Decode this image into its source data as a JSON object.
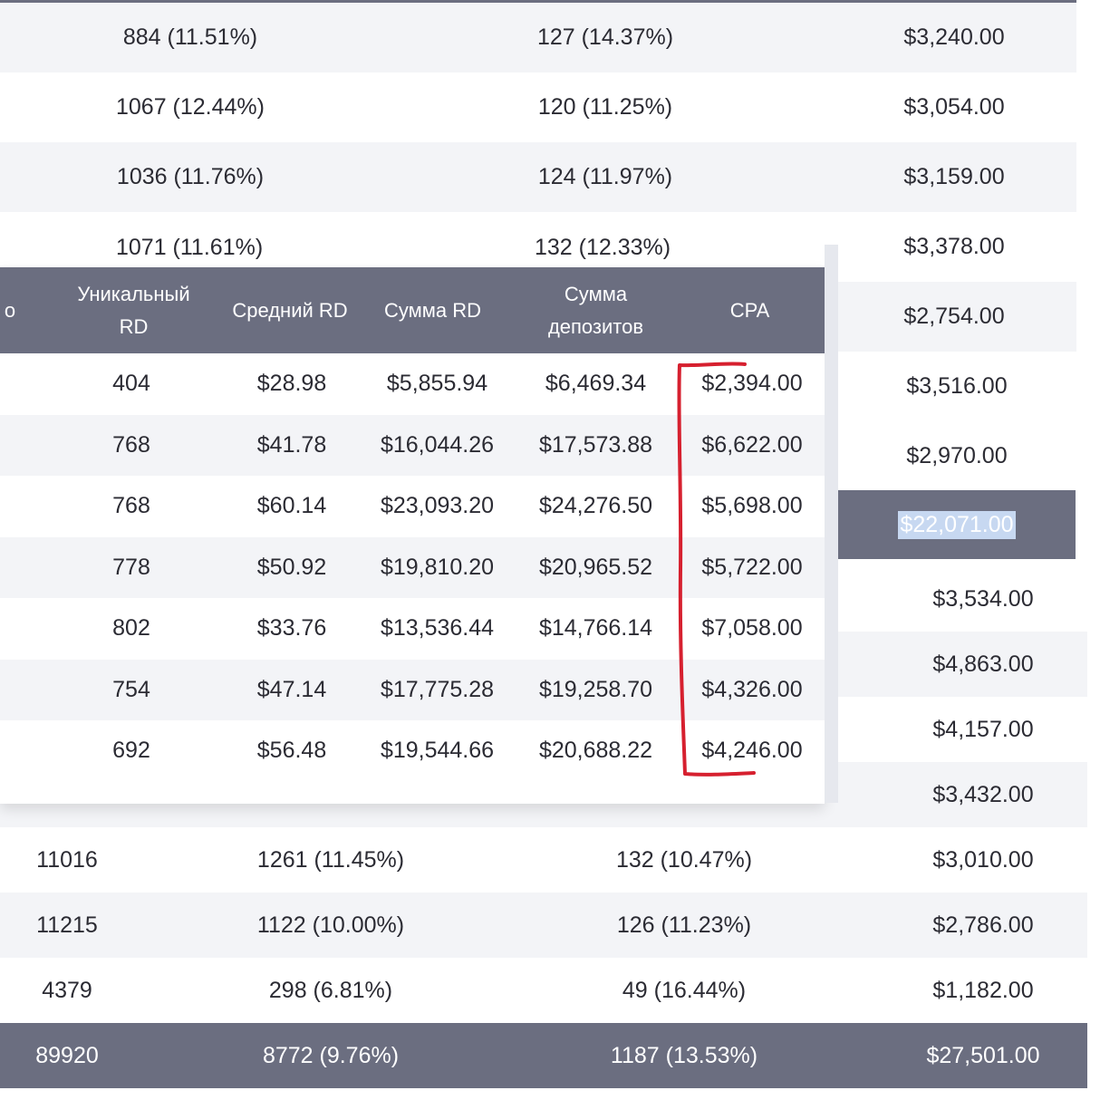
{
  "top_table": {
    "rows": [
      {
        "c2": "884 (11.51%)",
        "c3": "127 (14.37%)",
        "c4": "$3,240.00"
      },
      {
        "c2": "1067 (12.44%)",
        "c3": "120 (11.25%)",
        "c4": "$3,054.00"
      },
      {
        "c2": "1036 (11.76%)",
        "c3": "124 (11.97%)",
        "c4": "$3,159.00"
      },
      {
        "c2": "1071 (11.61%)",
        "c3": "132 (12.33%)",
        "c4": "$3,378.00"
      },
      {
        "c4": "$2,754.00"
      }
    ]
  },
  "right_column": {
    "values": [
      "$3,516.00",
      "$2,970.00"
    ],
    "selected_total": "$22,071.00"
  },
  "front_table": {
    "headers": {
      "partial": "о",
      "unique_rd": "Уникальный RD",
      "avg_rd": "Средний RD",
      "sum_rd": "Сумма RD",
      "sum_deposits": "Сумма депозитов",
      "cpa": "CPA"
    },
    "rows": [
      {
        "unique_rd": "404",
        "avg_rd": "$28.98",
        "sum_rd": "$5,855.94",
        "sum_deposits": "$6,469.34",
        "cpa": "$2,394.00"
      },
      {
        "unique_rd": "768",
        "avg_rd": "$41.78",
        "sum_rd": "$16,044.26",
        "sum_deposits": "$17,573.88",
        "cpa": "$6,622.00"
      },
      {
        "unique_rd": "768",
        "avg_rd": "$60.14",
        "sum_rd": "$23,093.20",
        "sum_deposits": "$24,276.50",
        "cpa": "$5,698.00"
      },
      {
        "unique_rd": "778",
        "avg_rd": "$50.92",
        "sum_rd": "$19,810.20",
        "sum_deposits": "$20,965.52",
        "cpa": "$5,722.00"
      },
      {
        "unique_rd": "802",
        "avg_rd": "$33.76",
        "sum_rd": "$13,536.44",
        "sum_deposits": "$14,766.14",
        "cpa": "$7,058.00"
      },
      {
        "unique_rd": "754",
        "avg_rd": "$47.14",
        "sum_rd": "$17,775.28",
        "sum_deposits": "$19,258.70",
        "cpa": "$4,326.00"
      },
      {
        "unique_rd": "692",
        "avg_rd": "$56.48",
        "sum_rd": "$19,544.66",
        "sum_deposits": "$20,688.22",
        "cpa": "$4,246.00"
      }
    ]
  },
  "bottom_table": {
    "rows": [
      {
        "c1": "",
        "c2": "",
        "c3": "",
        "c4": "$3,534.00"
      },
      {
        "c1": "",
        "c2": "",
        "c3": "",
        "c4": "$4,863.00"
      },
      {
        "c1": "",
        "c2": "",
        "c3": "",
        "c4": "$4,157.00"
      },
      {
        "c1": "",
        "c2": "",
        "c3": "",
        "c4": "$3,432.00"
      },
      {
        "c1": "11016",
        "c2": "1261 (11.45%)",
        "c3": "132 (10.47%)",
        "c4": "$3,010.00"
      },
      {
        "c1": "11215",
        "c2": "1122 (10.00%)",
        "c3": "126 (11.23%)",
        "c4": "$2,786.00"
      },
      {
        "c1": "4379",
        "c2": "298 (6.81%)",
        "c3": "49 (16.44%)",
        "c4": "$1,182.00"
      }
    ],
    "total": {
      "c1": "89920",
      "c2": "8772 (9.76%)",
      "c3": "1187 (13.53%)",
      "c4": "$27,501.00"
    }
  },
  "colors": {
    "header_bg": "#6b6e80",
    "stripe": "#f3f4f7",
    "annotation": "#d6202f",
    "selection": "#c7d8f1"
  }
}
